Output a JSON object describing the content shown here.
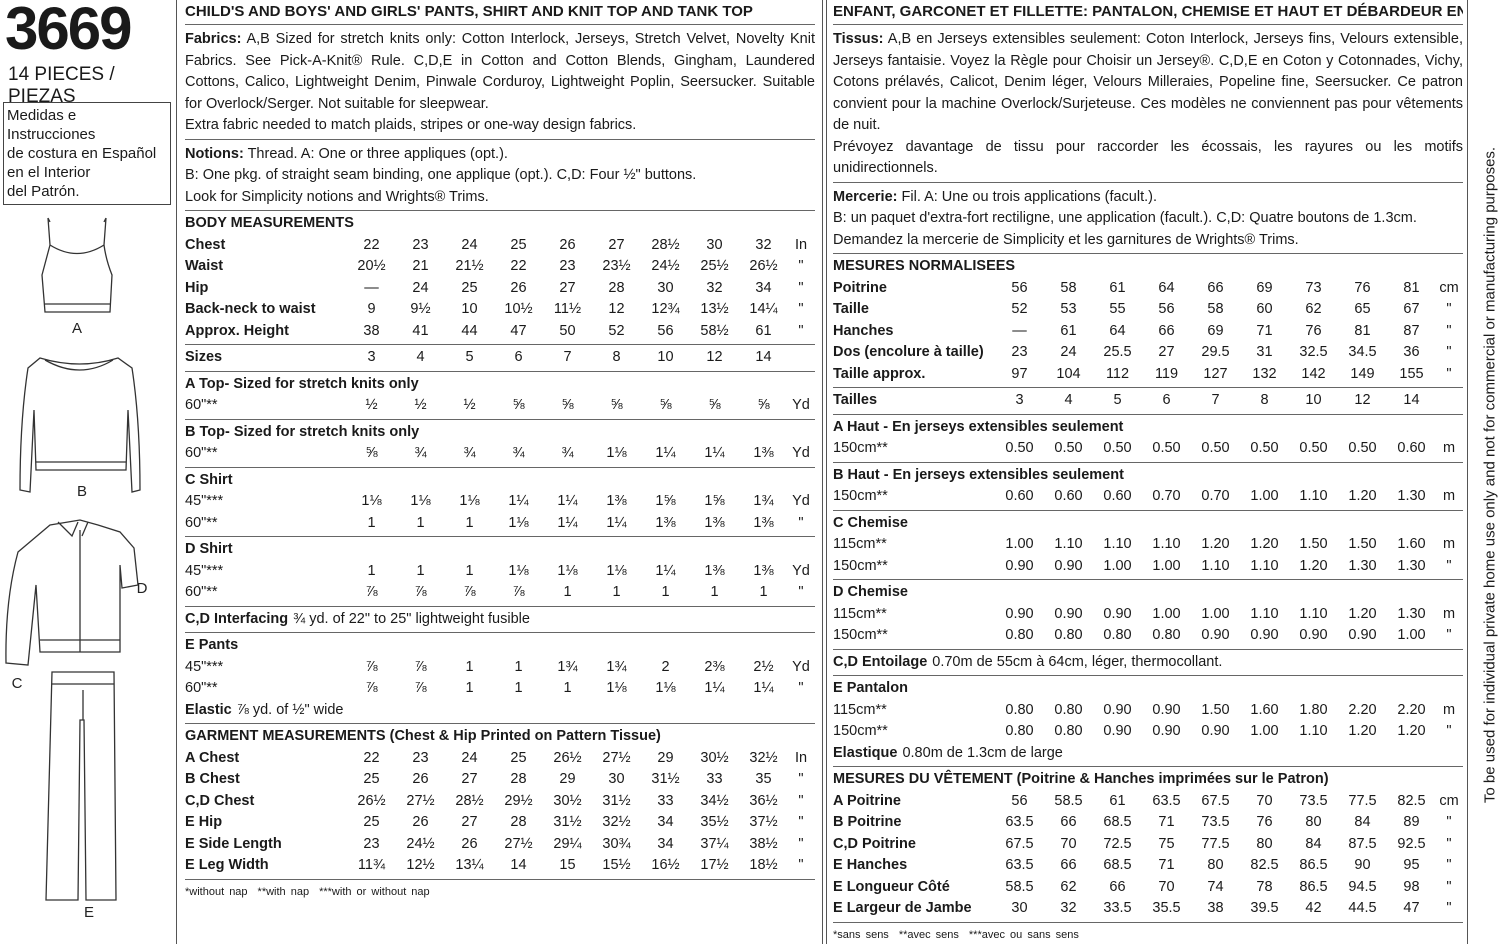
{
  "header": {
    "number": "3669",
    "pieces": "14 PIECES / PIEZAS",
    "spanish_note": [
      "Medidas e Instrucciones",
      "de costura en Español",
      "en el Interior",
      "del Patrón."
    ]
  },
  "illustrations": [
    "A",
    "B",
    "D",
    "C",
    "E"
  ],
  "side_note": "To be used for individual private home use only and not for commercial or manufacturing purposes.",
  "columns": [
    {
      "title": "CHILD'S AND BOYS' AND GIRLS' PANTS, SHIRT AND KNIT TOP AND TANK TOP",
      "fabrics": {
        "label": "Fabrics:",
        "text": "A,B Sized for stretch knits only: Cotton Interlock, Jerseys, Stretch Velvet, Novelty Knit Fabrics. See Pick-A-Knit® Rule. C,D,E in Cotton and Cotton Blends, Gingham, Laundered Cottons, Calico, Lightweight Denim, Pinwale Corduroy, Lightweight Poplin, Seersucker. Suitable for Overlock/Serger. Not suitable for sleepwear.",
        "extra": "Extra fabric needed to match plaids, stripes or one-way design fabrics."
      },
      "notions": {
        "label": "Notions:",
        "lines": [
          "Thread. A: One or three appliques (opt.).",
          "B: One pkg. of straight seam binding, one applique (opt.). C,D: Four ½\" buttons.",
          "Look for Simplicity notions and Wrights® Trims."
        ]
      },
      "sections": [
        {
          "heading": "BODY MEASUREMENTS",
          "rows": [
            {
              "label": "Chest",
              "values": [
                "22",
                "23",
                "24",
                "25",
                "26",
                "27",
                "28½",
                "30",
                "32"
              ],
              "unit": "In"
            },
            {
              "label": "Waist",
              "values": [
                "20½",
                "21",
                "21½",
                "22",
                "23",
                "23½",
                "24½",
                "25½",
                "26½"
              ],
              "unit": "\""
            },
            {
              "label": "Hip",
              "values": [
                "—",
                "24",
                "25",
                "26",
                "27",
                "28",
                "30",
                "32",
                "34"
              ],
              "unit": "\""
            },
            {
              "label": "Back-neck to waist",
              "values": [
                "9",
                "9½",
                "10",
                "10½",
                "11½",
                "12",
                "12¾",
                "13½",
                "14¼"
              ],
              "unit": "\""
            },
            {
              "label": "Approx. Height",
              "values": [
                "38",
                "41",
                "44",
                "47",
                "50",
                "52",
                "56",
                "58½",
                "61"
              ],
              "unit": "\""
            }
          ]
        },
        {
          "rows": [
            {
              "label": "Sizes",
              "values": [
                "3",
                "4",
                "5",
                "6",
                "7",
                "8",
                "10",
                "12",
                "14"
              ]
            }
          ]
        },
        {
          "heading": "A Top- Sized for stretch knits only",
          "rows": [
            {
              "label": "60\"**",
              "values": [
                "½",
                "½",
                "½",
                "⅝",
                "⅝",
                "⅝",
                "⅝",
                "⅝",
                "⅝"
              ],
              "unit": "Yd"
            }
          ]
        },
        {
          "heading": "B Top- Sized for stretch knits only",
          "rows": [
            {
              "label": "60\"**",
              "values": [
                "⅝",
                "¾",
                "¾",
                "¾",
                "¾",
                "1⅛",
                "1¼",
                "1¼",
                "1⅜"
              ],
              "unit": "Yd"
            }
          ]
        },
        {
          "heading": "C Shirt",
          "rows": [
            {
              "label": "45\"***",
              "values": [
                "1⅛",
                "1⅛",
                "1⅛",
                "1¼",
                "1¼",
                "1⅜",
                "1⅝",
                "1⅝",
                "1¾"
              ],
              "unit": "Yd"
            },
            {
              "label": "60\"**",
              "values": [
                "1",
                "1",
                "1",
                "1⅛",
                "1¼",
                "1¼",
                "1⅜",
                "1⅜",
                "1⅜"
              ],
              "unit": "\""
            }
          ]
        },
        {
          "heading": "D Shirt",
          "rows": [
            {
              "label": "45\"***",
              "values": [
                "1",
                "1",
                "1",
                "1⅛",
                "1⅛",
                "1⅛",
                "1¼",
                "1⅜",
                "1⅜"
              ],
              "unit": "Yd"
            },
            {
              "label": "60\"**",
              "values": [
                "⅞",
                "⅞",
                "⅞",
                "⅞",
                "1",
                "1",
                "1",
                "1",
                "1"
              ],
              "unit": "\""
            }
          ]
        },
        {
          "rows": [
            {
              "label": "C,D Interfacing",
              "text": "¾ yd. of 22\" to 25\" lightweight fusible"
            }
          ]
        },
        {
          "heading": "E Pants",
          "rows": [
            {
              "label": "45\"***",
              "values": [
                "⅞",
                "⅞",
                "1",
                "1",
                "1¾",
                "1¾",
                "2",
                "2⅜",
                "2½"
              ],
              "unit": "Yd"
            },
            {
              "label": "60\"**",
              "values": [
                "⅞",
                "⅞",
                "1",
                "1",
                "1",
                "1⅛",
                "1⅛",
                "1¼",
                "1¼"
              ],
              "unit": "\""
            },
            {
              "label": "Elastic",
              "text": "⅞ yd. of ½\" wide"
            }
          ]
        },
        {
          "heading": "GARMENT MEASUREMENTS (Chest & Hip Printed on Pattern Tissue)",
          "rows": [
            {
              "label": "A Chest",
              "values": [
                "22",
                "23",
                "24",
                "25",
                "26½",
                "27½",
                "29",
                "30½",
                "32½"
              ],
              "unit": "In"
            },
            {
              "label": "B Chest",
              "values": [
                "25",
                "26",
                "27",
                "28",
                "29",
                "30",
                "31½",
                "33",
                "35"
              ],
              "unit": "\""
            },
            {
              "label": "C,D Chest",
              "values": [
                "26½",
                "27½",
                "28½",
                "29½",
                "30½",
                "31½",
                "33",
                "34½",
                "36½"
              ],
              "unit": "\""
            },
            {
              "label": "E Hip",
              "values": [
                "25",
                "26",
                "27",
                "28",
                "31½",
                "32½",
                "34",
                "35½",
                "37½"
              ],
              "unit": "\""
            },
            {
              "label": "E Side Length",
              "values": [
                "23",
                "24½",
                "26",
                "27½",
                "29¼",
                "30¾",
                "34",
                "37¼",
                "38½"
              ],
              "unit": "\""
            },
            {
              "label": "E Leg Width",
              "values": [
                "11¾",
                "12½",
                "13¼",
                "14",
                "15",
                "15½",
                "16½",
                "17½",
                "18½"
              ],
              "unit": "\""
            }
          ]
        }
      ],
      "footnotes": [
        "*without nap",
        "**with nap",
        "***with or without nap"
      ]
    },
    {
      "title": "ENFANT, GARCONET ET FILLETTE: PANTALON, CHEMISE ET HAUT ET DÉBARDEUR EN JERSEY",
      "fabrics": {
        "label": "Tissus:",
        "text": "A,B en Jerseys extensibles seulement: Coton Interlock, Jerseys fins, Velours extensible, Jerseys fantaisie. Voyez la Règle pour Choisir un Jersey®. C,D,E en Coton y Cotonnades, Vichy, Cotons prélavés, Calicot, Denim léger, Velours Milleraies, Popeline fine, Seersucker. Ce patron convient pour la machine Overlock/Surjeteuse. Ces modèles ne conviennent pas pour vêtements de nuit.",
        "extra": "Prévoyez davantage de tissu pour raccorder les écossais, les rayures ou les motifs unidirectionnels."
      },
      "notions": {
        "label": "Mercerie:",
        "lines": [
          "Fil. A: Une ou trois applications (facult.).",
          "B: un paquet d'extra-fort rectiligne, une application (facult.). C,D: Quatre boutons de 1.3cm.",
          "Demandez la mercerie de Simplicity et les garnitures de Wrights® Trims."
        ]
      },
      "sections": [
        {
          "heading": "MESURES NORMALISEES",
          "rows": [
            {
              "label": "Poitrine",
              "values": [
                "56",
                "58",
                "61",
                "64",
                "66",
                "69",
                "73",
                "76",
                "81"
              ],
              "unit": "cm"
            },
            {
              "label": "Taille",
              "values": [
                "52",
                "53",
                "55",
                "56",
                "58",
                "60",
                "62",
                "65",
                "67"
              ],
              "unit": "\""
            },
            {
              "label": "Hanches",
              "values": [
                "—",
                "61",
                "64",
                "66",
                "69",
                "71",
                "76",
                "81",
                "87"
              ],
              "unit": "\""
            },
            {
              "label": "Dos (encolure à taille)",
              "values": [
                "23",
                "24",
                "25.5",
                "27",
                "29.5",
                "31",
                "32.5",
                "34.5",
                "36"
              ],
              "unit": "\""
            },
            {
              "label": "Taille approx.",
              "values": [
                "97",
                "104",
                "112",
                "119",
                "127",
                "132",
                "142",
                "149",
                "155"
              ],
              "unit": "\""
            }
          ]
        },
        {
          "rows": [
            {
              "label": "Tailles",
              "values": [
                "3",
                "4",
                "5",
                "6",
                "7",
                "8",
                "10",
                "12",
                "14"
              ]
            }
          ]
        },
        {
          "heading": "A Haut - En jerseys extensibles seulement",
          "rows": [
            {
              "label": "150cm**",
              "values": [
                "0.50",
                "0.50",
                "0.50",
                "0.50",
                "0.50",
                "0.50",
                "0.50",
                "0.50",
                "0.60"
              ],
              "unit": "m"
            }
          ]
        },
        {
          "heading": "B Haut - En jerseys extensibles seulement",
          "rows": [
            {
              "label": "150cm**",
              "values": [
                "0.60",
                "0.60",
                "0.60",
                "0.70",
                "0.70",
                "1.00",
                "1.10",
                "1.20",
                "1.30"
              ],
              "unit": "m"
            }
          ]
        },
        {
          "heading": "C Chemise",
          "rows": [
            {
              "label": "115cm**",
              "values": [
                "1.00",
                "1.10",
                "1.10",
                "1.10",
                "1.20",
                "1.20",
                "1.50",
                "1.50",
                "1.60"
              ],
              "unit": "m"
            },
            {
              "label": "150cm**",
              "values": [
                "0.90",
                "0.90",
                "1.00",
                "1.00",
                "1.10",
                "1.10",
                "1.20",
                "1.30",
                "1.30"
              ],
              "unit": "\""
            }
          ]
        },
        {
          "heading": "D Chemise",
          "rows": [
            {
              "label": "115cm**",
              "values": [
                "0.90",
                "0.90",
                "0.90",
                "1.00",
                "1.00",
                "1.10",
                "1.10",
                "1.20",
                "1.30"
              ],
              "unit": "m"
            },
            {
              "label": "150cm**",
              "values": [
                "0.80",
                "0.80",
                "0.80",
                "0.80",
                "0.90",
                "0.90",
                "0.90",
                "0.90",
                "1.00"
              ],
              "unit": "\""
            }
          ]
        },
        {
          "rows": [
            {
              "label": "C,D Entoilage",
              "text": "0.70m de 55cm à 64cm, léger, thermocollant."
            }
          ]
        },
        {
          "heading": "E Pantalon",
          "rows": [
            {
              "label": "115cm**",
              "values": [
                "0.80",
                "0.80",
                "0.90",
                "0.90",
                "1.50",
                "1.60",
                "1.80",
                "2.20",
                "2.20"
              ],
              "unit": "m"
            },
            {
              "label": "150cm**",
              "values": [
                "0.80",
                "0.80",
                "0.90",
                "0.90",
                "0.90",
                "1.00",
                "1.10",
                "1.20",
                "1.20"
              ],
              "unit": "\""
            },
            {
              "label": "Elastique",
              "text": "0.80m de 1.3cm de large"
            }
          ]
        },
        {
          "heading": "MESURES DU VÊTEMENT (Poitrine & Hanches imprimées sur le Patron)",
          "rows": [
            {
              "label": "A Poitrine",
              "values": [
                "56",
                "58.5",
                "61",
                "63.5",
                "67.5",
                "70",
                "73.5",
                "77.5",
                "82.5"
              ],
              "unit": "cm"
            },
            {
              "label": "B Poitrine",
              "values": [
                "63.5",
                "66",
                "68.5",
                "71",
                "73.5",
                "76",
                "80",
                "84",
                "89"
              ],
              "unit": "\""
            },
            {
              "label": "C,D Poitrine",
              "values": [
                "67.5",
                "70",
                "72.5",
                "75",
                "77.5",
                "80",
                "84",
                "87.5",
                "92.5"
              ],
              "unit": "\""
            },
            {
              "label": "E Hanches",
              "values": [
                "63.5",
                "66",
                "68.5",
                "71",
                "80",
                "82.5",
                "86.5",
                "90",
                "95"
              ],
              "unit": "\""
            },
            {
              "label": "E Longueur Côté",
              "values": [
                "58.5",
                "62",
                "66",
                "70",
                "74",
                "78",
                "86.5",
                "94.5",
                "98"
              ],
              "unit": "\""
            },
            {
              "label": "E Largeur de Jambe",
              "values": [
                "30",
                "32",
                "33.5",
                "35.5",
                "38",
                "39.5",
                "42",
                "44.5",
                "47"
              ],
              "unit": "\""
            }
          ]
        }
      ],
      "footnotes": [
        "*sans sens",
        "**avec sens",
        "***avec ou sans sens"
      ]
    }
  ]
}
